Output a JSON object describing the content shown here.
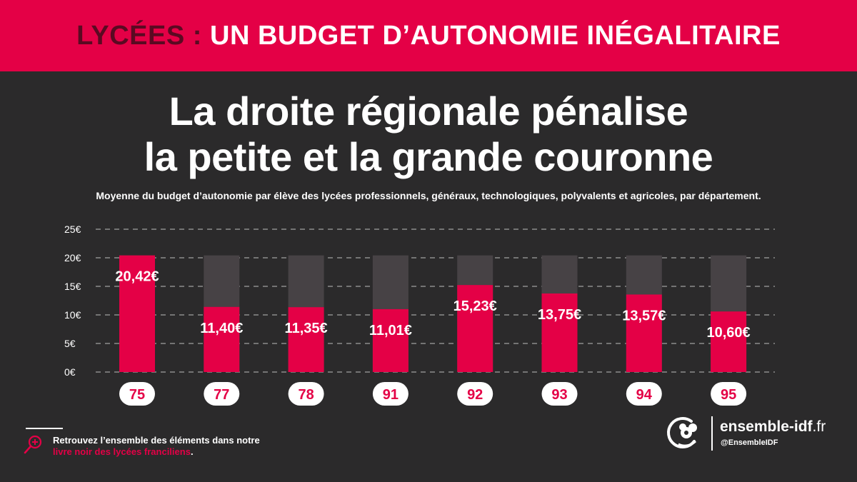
{
  "banner": {
    "prefix": "LYCÉES : ",
    "main": "UN BUDGET D’AUTONOMIE INÉGALITAIRE"
  },
  "headline": {
    "line1": "La droite régionale pénalise",
    "line2": "la petite et la grande couronne"
  },
  "subtitle": "Moyenne du budget d’autonomie par élève des lycées professionnels, généraux, technologiques, polyvalents et agricoles, par département.",
  "colors": {
    "accent": "#e40046",
    "background": "#2b2a2b",
    "ghost_bar": "#474245",
    "white": "#ffffff"
  },
  "chart_data": {
    "type": "bar",
    "title": "Moyenne du budget d’autonomie par élève des lycées professionnels, généraux, technologiques, polyvalents et agricoles, par département.",
    "categories": [
      "75",
      "77",
      "78",
      "91",
      "92",
      "93",
      "94",
      "95"
    ],
    "values": [
      20.42,
      11.4,
      11.35,
      11.01,
      15.23,
      13.75,
      13.57,
      10.6
    ],
    "value_labels": [
      "20,42€",
      "11,40€",
      "11,35€",
      "11,01€",
      "15,23€",
      "13,75€",
      "13,57€",
      "10,60€"
    ],
    "reference_value": 20.42,
    "y_ticks": [
      0,
      5,
      10,
      15,
      20,
      25
    ],
    "y_tick_labels": [
      "0€",
      "5€",
      "10€",
      "15€",
      "20€",
      "25€"
    ],
    "ylim": [
      0,
      25
    ],
    "xlabel": "",
    "ylabel": "",
    "grid": true
  },
  "footer": {
    "line1": "Retrouvez l’ensemble des éléments dans notre",
    "link_text": "livre noir des lycées franciliens",
    "line2_suffix": "."
  },
  "brand": {
    "site_name": "ensemble-idf",
    "site_tld": ".fr",
    "handle": "@EnsembleIDF"
  },
  "icons": {
    "search": "search-plus-icon",
    "logo": "ensemble-idf-logo-icon"
  }
}
